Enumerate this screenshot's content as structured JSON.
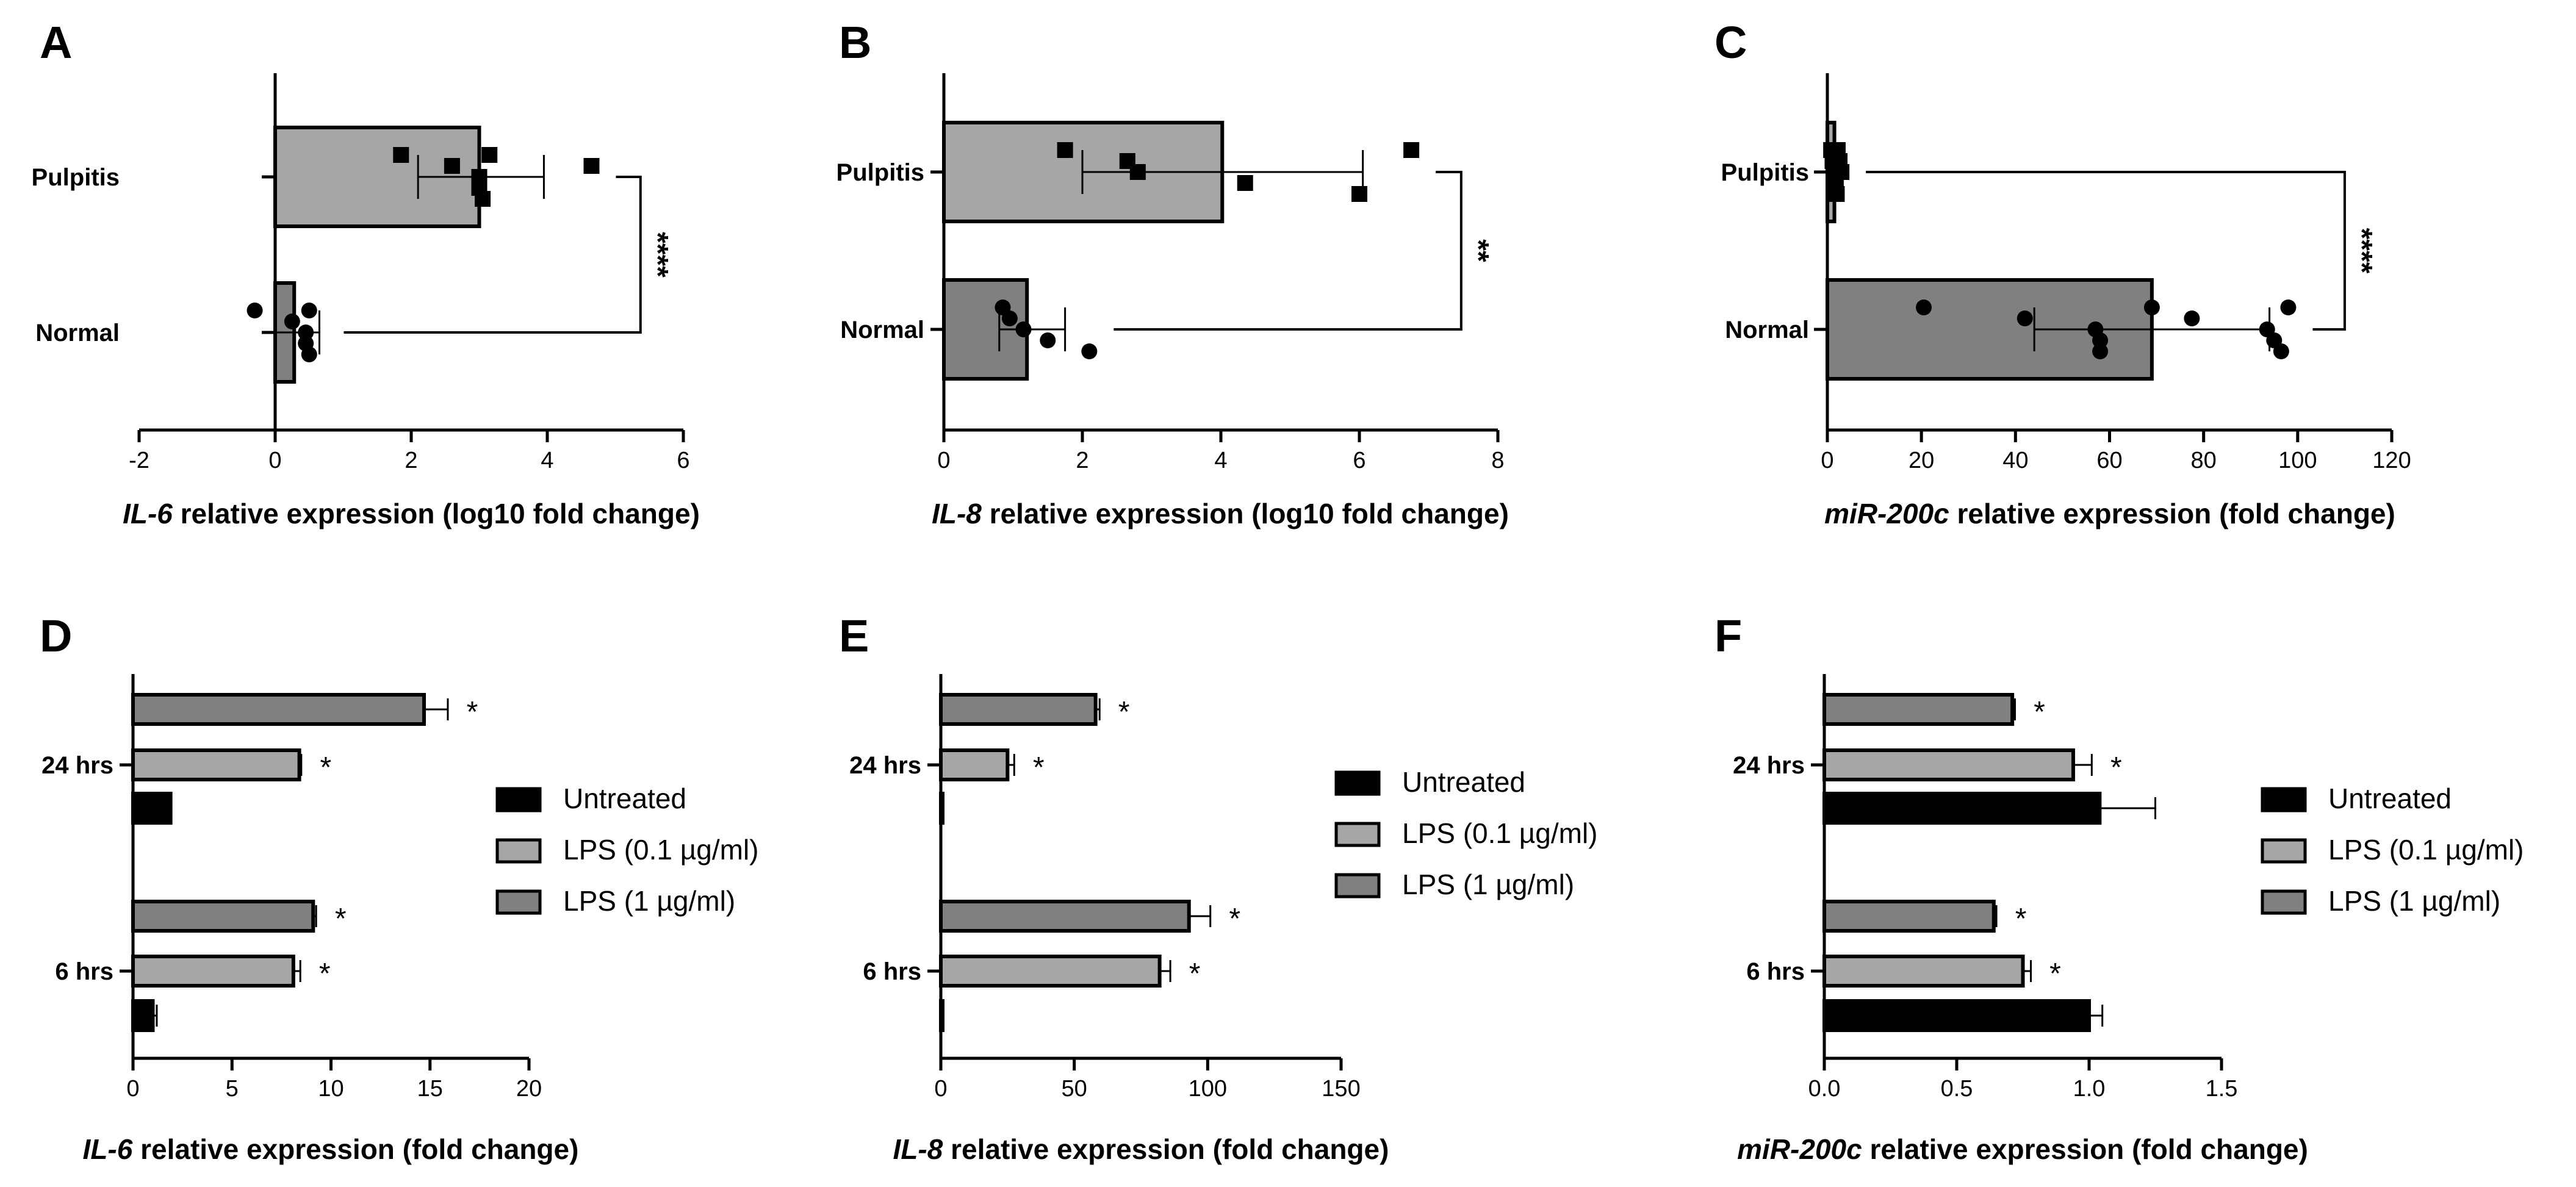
{
  "figure": {
    "panels_top": [
      {
        "id": "A",
        "ital": "IL-6",
        "rest": " relative expression (log10 fold change)"
      },
      {
        "id": "B",
        "ital": "IL-8",
        "rest": " relative expression (log10 fold change)"
      },
      {
        "id": "C",
        "ital": "miR-200c",
        "rest": " relative expression (fold change)"
      }
    ],
    "panels_bottom": [
      {
        "id": "D",
        "ital": "IL-6",
        "rest": " relative expression (fold change)"
      },
      {
        "id": "E",
        "ital": "IL-8",
        "rest": " relative expression (fold change)"
      },
      {
        "id": "F",
        "ital": "miR-200c",
        "rest": " relative expression (fold change)"
      }
    ],
    "legend": {
      "items": [
        {
          "label": "Untreated",
          "color": "#000000"
        },
        {
          "label": "LPS (0.1 µg/ml)",
          "color": "#a6a6a6"
        },
        {
          "label": "LPS (1 µg/ml)",
          "color": "#808080"
        }
      ]
    }
  },
  "chart_data": [
    {
      "id": "A",
      "type": "bar",
      "orientation": "horizontal",
      "categories": [
        "Pulpitis",
        "Normal"
      ],
      "xlim": [
        -2,
        6
      ],
      "xticks": [
        -2,
        0,
        2,
        4,
        6
      ],
      "xlabel": "IL-6 relative expression (log10 fold change)",
      "colors": [
        "#a6a6a6",
        "#808080"
      ],
      "values": [
        3.0,
        0.28
      ],
      "errors": [
        [
          2.1,
          3.95
        ],
        [
          0.0,
          0.65
        ]
      ],
      "points": [
        [
          1.85,
          2.6,
          3.0,
          3.0,
          3.05,
          3.15,
          4.65
        ],
        [
          -0.3,
          0.25,
          0.45,
          0.45,
          0.5,
          0.5
        ]
      ],
      "markers": [
        "square",
        "circle"
      ],
      "significance": "****"
    },
    {
      "id": "B",
      "type": "bar",
      "orientation": "horizontal",
      "categories": [
        "Pulpitis",
        "Normal"
      ],
      "xlim": [
        0,
        8
      ],
      "xticks": [
        0,
        2,
        4,
        6,
        8
      ],
      "xlabel": "IL-8 relative expression (log10 fold change)",
      "colors": [
        "#a6a6a6",
        "#808080"
      ],
      "values": [
        4.02,
        1.2
      ],
      "errors": [
        [
          2.0,
          6.05
        ],
        [
          0.8,
          1.75
        ]
      ],
      "points": [
        [
          1.75,
          2.65,
          2.8,
          4.35,
          6.0,
          6.75
        ],
        [
          0.85,
          0.95,
          1.15,
          1.5,
          2.1
        ]
      ],
      "markers": [
        "square",
        "circle"
      ],
      "significance": "**"
    },
    {
      "id": "C",
      "type": "bar",
      "orientation": "horizontal",
      "categories": [
        "Pulpitis",
        "Normal"
      ],
      "xlim": [
        0,
        120
      ],
      "xticks": [
        0,
        20,
        40,
        60,
        80,
        100,
        120
      ],
      "xlabel": "miR-200c relative expression (fold change)",
      "colors": [
        "#a6a6a6",
        "#808080"
      ],
      "values": [
        1.5,
        69
      ],
      "errors": [
        [
          0.5,
          2.5
        ],
        [
          44,
          94
        ]
      ],
      "points": [
        [
          0.8,
          1.1,
          1.5,
          1.8,
          2.0,
          2.2,
          2.6,
          3.0
        ],
        [
          20.5,
          42,
          57,
          58,
          58,
          69,
          77.5,
          93.5,
          95,
          96.5,
          98
        ]
      ],
      "markers": [
        "square",
        "circle"
      ],
      "significance": "****"
    },
    {
      "id": "D",
      "type": "bar",
      "orientation": "horizontal",
      "group_labels": [
        "24 hrs",
        "6 hrs"
      ],
      "series": [
        {
          "name": "Untreated",
          "values": [
            1.9,
            1.0
          ],
          "errors": [
            0.0,
            0.2
          ]
        },
        {
          "name": "LPS (0.1 µg/ml)",
          "values": [
            8.4,
            8.1
          ],
          "errors": [
            0.1,
            0.35
          ]
        },
        {
          "name": "LPS (1 µg/ml)",
          "values": [
            14.7,
            9.1
          ],
          "errors": [
            1.2,
            0.15
          ]
        }
      ],
      "xlim": [
        0,
        20
      ],
      "xticks": [
        0,
        5,
        10,
        15,
        20
      ],
      "xlabel": "IL-6 relative expression (fold change)",
      "significance": [
        [
          "",
          "*",
          "*"
        ],
        [
          "",
          "*",
          "*"
        ]
      ]
    },
    {
      "id": "E",
      "type": "bar",
      "orientation": "horizontal",
      "group_labels": [
        "24 hrs",
        "6 hrs"
      ],
      "series": [
        {
          "name": "Untreated",
          "values": [
            0.5,
            0.5
          ],
          "errors": [
            0,
            0
          ]
        },
        {
          "name": "LPS (0.1 µg/ml)",
          "values": [
            25,
            82
          ],
          "errors": [
            2.5,
            4
          ]
        },
        {
          "name": "LPS (1 µg/ml)",
          "values": [
            58,
            93
          ],
          "errors": [
            1.5,
            8
          ]
        }
      ],
      "xlim": [
        0,
        150
      ],
      "xticks": [
        0,
        50,
        100,
        150
      ],
      "xlabel": "IL-8 relative expression (fold change)",
      "significance": [
        [
          "",
          "*",
          "*"
        ],
        [
          "",
          "*",
          "*"
        ]
      ]
    },
    {
      "id": "F",
      "type": "bar",
      "orientation": "horizontal",
      "group_labels": [
        "24 hrs",
        "6 hrs"
      ],
      "series": [
        {
          "name": "Untreated",
          "values": [
            1.04,
            1.0
          ],
          "errors": [
            0.21,
            0.05
          ]
        },
        {
          "name": "LPS (0.1 µg/ml)",
          "values": [
            0.94,
            0.75
          ],
          "errors": [
            0.07,
            0.03
          ]
        },
        {
          "name": "LPS (1 µg/ml)",
          "values": [
            0.71,
            0.64
          ],
          "errors": [
            0.01,
            0.01
          ]
        }
      ],
      "xlim": [
        0,
        1.5
      ],
      "xticks": [
        "0.0",
        "0.5",
        "1.0",
        "1.5"
      ],
      "xlabel": "miR-200c relative expression (fold change)",
      "significance": [
        [
          "",
          "*",
          "*"
        ],
        [
          "",
          "*",
          "*"
        ]
      ]
    }
  ]
}
